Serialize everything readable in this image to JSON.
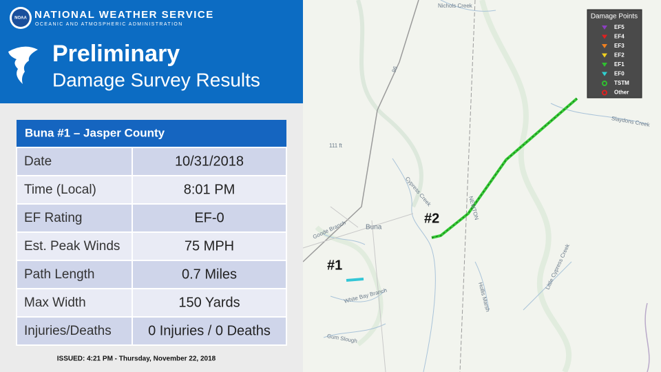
{
  "header": {
    "agency": "NATIONAL WEATHER SERVICE",
    "subagency": "OCEANIC AND ATMOSPHERIC ADMINISTRATION",
    "logo": "NOAA",
    "title1": "Preliminary",
    "title2": "Damage Survey Results"
  },
  "table": {
    "title": "Buna #1 – Jasper County",
    "rows": [
      [
        "Date",
        "10/31/2018"
      ],
      [
        "Time (Local)",
        "8:01 PM"
      ],
      [
        "EF Rating",
        "EF-0"
      ],
      [
        "Est. Peak Winds",
        "75 MPH"
      ],
      [
        "Path Length",
        "0.7 Miles"
      ],
      [
        "Max Width",
        "150 Yards"
      ],
      [
        "Injuries/Deaths",
        "0 Injuries / 0 Deaths"
      ]
    ]
  },
  "issued": "ISSUED: 4:21 PM - Thursday, November 22, 2018",
  "map": {
    "labels": [
      "Nichols Creek",
      "Slaydons Creek",
      "111 ft",
      "Cypress Creek",
      "NEWTON",
      "Buna",
      "Goode Branch",
      "White Bay Branch",
      "Gum Slough",
      "Hollis Marsh",
      "Little Cypress Creek",
      "96"
    ],
    "paths": [
      "#1",
      "#2"
    ]
  },
  "legend": {
    "title": "Damage Points",
    "items": [
      "EF5",
      "EF4",
      "EF3",
      "EF2",
      "EF1",
      "EF0",
      "TSTM",
      "Other"
    ]
  }
}
